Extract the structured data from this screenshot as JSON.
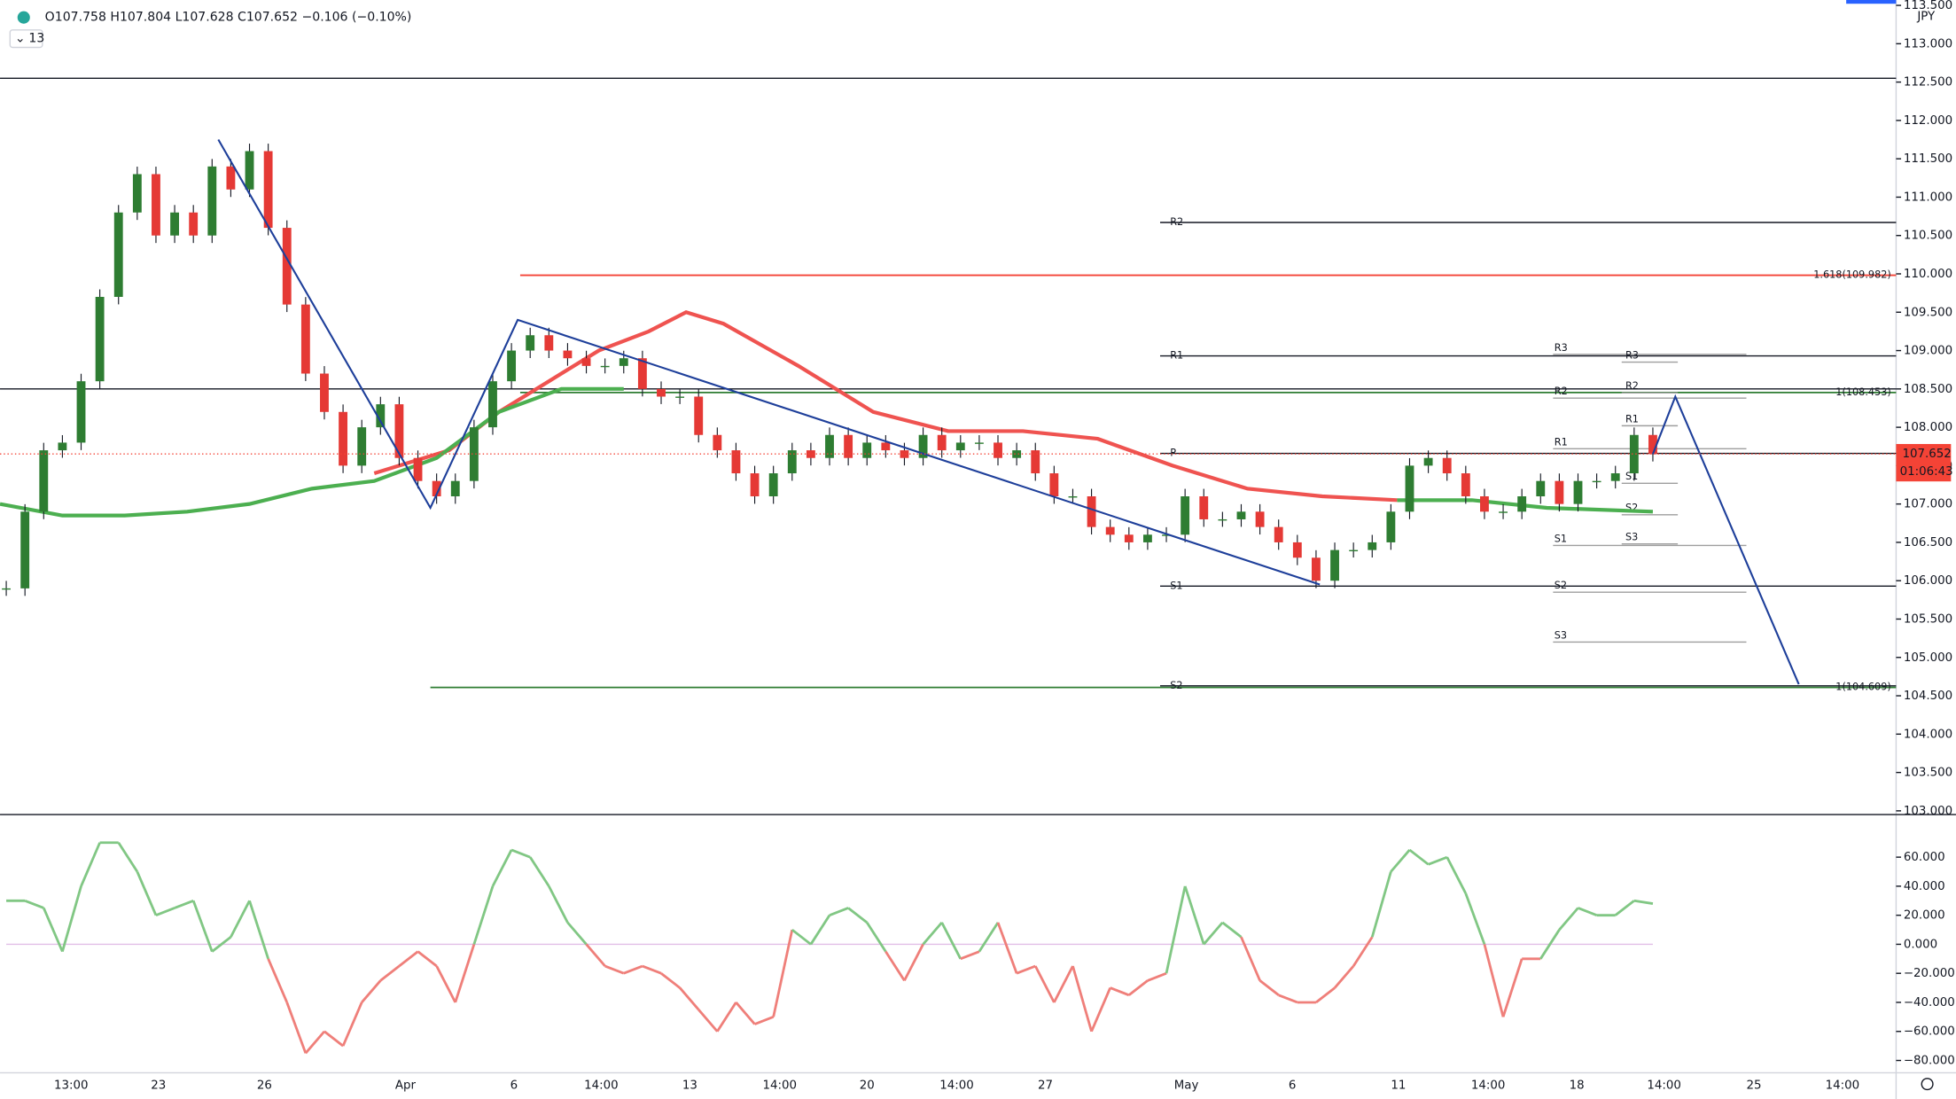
{
  "header": {
    "ohlc": "O107.758 H107.804 L107.628 C107.652 −0.106 (−0.10%)",
    "interval": "13",
    "currency": "JPY"
  },
  "chart_data": {
    "type": "candlestick",
    "ylim": [
      103.0,
      113.57
    ],
    "yticks": [
      {
        "value": 113.5,
        "label": "113.500"
      },
      {
        "value": 113,
        "label": "113.000"
      },
      {
        "value": 112.5,
        "label": "112.500"
      },
      {
        "value": 112,
        "label": "112.000"
      },
      {
        "value": 111.5,
        "label": "111.500"
      },
      {
        "value": 111,
        "label": "111.000"
      },
      {
        "value": 110.5,
        "label": "110.500"
      },
      {
        "value": 110,
        "label": "110.000"
      },
      {
        "value": 109.5,
        "label": "109.500"
      },
      {
        "value": 109,
        "label": "109.000"
      },
      {
        "value": 108.5,
        "label": "108.500"
      },
      {
        "value": 108,
        "label": "108.000"
      },
      {
        "value": 107.5,
        "label": "107.500"
      },
      {
        "value": 107,
        "label": "107.000"
      },
      {
        "value": 106.5,
        "label": "106.500"
      },
      {
        "value": 106,
        "label": "106.000"
      },
      {
        "value": 105.5,
        "label": "105.500"
      },
      {
        "value": 105,
        "label": "105.000"
      },
      {
        "value": 104.5,
        "label": "104.500"
      },
      {
        "value": 104,
        "label": "104.000"
      },
      {
        "value": 103.5,
        "label": "103.500"
      },
      {
        "value": 103,
        "label": "103.000"
      }
    ],
    "x_labels": [
      "13:00",
      "23",
      "26",
      "Apr",
      "6",
      "14:00",
      "13",
      "14:00",
      "20",
      "14:00",
      "27",
      "May",
      "6",
      "11",
      "14:00",
      "18",
      "14:00",
      "25",
      "14:00"
    ],
    "closes": [
      105.9,
      106.9,
      107.7,
      107.8,
      108.6,
      109.7,
      110.8,
      111.3,
      110.5,
      110.8,
      110.5,
      111.4,
      111.1,
      111.6,
      110.6,
      109.6,
      108.7,
      108.2,
      107.5,
      108.0,
      108.3,
      107.6,
      107.3,
      107.1,
      107.3,
      108.0,
      108.6,
      109.0,
      109.2,
      109.0,
      108.9,
      108.8,
      108.8,
      108.9,
      108.5,
      108.4,
      108.4,
      107.9,
      107.7,
      107.4,
      107.1,
      107.4,
      107.7,
      107.6,
      107.9,
      107.6,
      107.8,
      107.7,
      107.6,
      107.9,
      107.7,
      107.8,
      107.8,
      107.6,
      107.7,
      107.4,
      107.1,
      107.1,
      106.7,
      106.6,
      106.5,
      106.6,
      106.6,
      107.1,
      106.8,
      106.8,
      106.9,
      106.7,
      106.5,
      106.3,
      106.0,
      106.4,
      106.4,
      106.5,
      106.9,
      107.5,
      107.6,
      107.4,
      107.1,
      106.9,
      106.9,
      107.1,
      107.3,
      107.0,
      107.3,
      107.3,
      107.4,
      107.9,
      107.652
    ],
    "up_color": "#26a69a",
    "candle_up": "#2e7d32",
    "candle_down": "#e53935",
    "last_price": {
      "value": 107.652,
      "label": "107.652"
    },
    "countdown": "01:06:43",
    "ma_red": [
      107.4,
      107.7,
      108.2,
      108.6,
      109.0,
      109.25,
      109.5,
      109.35,
      108.8,
      108.2,
      107.95,
      107.95,
      107.85,
      107.5,
      107.2,
      107.1,
      107.05
    ],
    "ma_green": [
      107.0,
      106.85,
      106.85,
      106.9,
      107.0,
      107.2,
      107.3,
      107.6,
      108.2,
      108.5,
      108.5,
      null,
      107.05,
      107.05,
      106.95,
      106.9
    ],
    "levels": [
      {
        "value": 112.55,
        "color": "#131722"
      },
      {
        "value": 108.5,
        "color": "#131722"
      }
    ],
    "fib": [
      {
        "value": 109.982,
        "label": "1.618(109.982)",
        "color": "#f44336"
      },
      {
        "value": 108.453,
        "label": "1(108.453)",
        "color": "#2e7d32"
      },
      {
        "value": 104.609,
        "label": "1(104.609)",
        "color": "#2e7d32"
      }
    ],
    "pivot_sets": [
      {
        "color": "#131722",
        "levels": [
          {
            "name": "R2",
            "value": 110.67
          },
          {
            "name": "R1",
            "value": 108.93
          },
          {
            "name": "P",
            "value": 107.66
          },
          {
            "name": "S1",
            "value": 105.93
          },
          {
            "name": "S2",
            "value": 104.63
          }
        ]
      },
      {
        "color": "#9e9e9e",
        "levels": [
          {
            "name": "R3",
            "value": 108.95
          },
          {
            "name": "R2",
            "value": 108.38
          },
          {
            "name": "R1",
            "value": 107.72
          },
          {
            "name": "S1",
            "value": 106.46
          },
          {
            "name": "S2",
            "value": 105.85
          },
          {
            "name": "S3",
            "value": 105.2
          }
        ]
      },
      {
        "color": "#9e9e9e",
        "levels": [
          {
            "name": "R3",
            "value": 108.85
          },
          {
            "name": "R2",
            "value": 108.45
          },
          {
            "name": "R1",
            "value": 108.02
          },
          {
            "name": "S1",
            "value": 107.27
          },
          {
            "name": "S2",
            "value": 106.86
          },
          {
            "name": "S3",
            "value": 106.48
          }
        ]
      }
    ],
    "zigzag": [
      111.75,
      106.95,
      109.4,
      105.95
    ],
    "projection": [
      107.65,
      108.4,
      104.65
    ],
    "drawing_color": "#1e3f9a"
  },
  "oscillator": {
    "type": "line",
    "ylim": [
      -88.5,
      87.6
    ],
    "yticks": [
      {
        "value": 60,
        "label": "60.000"
      },
      {
        "value": 40,
        "label": "40.000"
      },
      {
        "value": 20,
        "label": "20.000"
      },
      {
        "value": 0,
        "label": "0.000"
      },
      {
        "value": -20,
        "label": "−20.000"
      },
      {
        "value": -40,
        "label": "−40.000"
      },
      {
        "value": -60,
        "label": "−60.000"
      },
      {
        "value": -80,
        "label": "−80.000"
      }
    ],
    "values": [
      30,
      30,
      25,
      -5,
      40,
      70,
      70,
      50,
      20,
      25,
      30,
      -5,
      5,
      30,
      -10,
      -40,
      -75,
      -60,
      -70,
      -40,
      -25,
      -15,
      -5,
      -15,
      -40,
      0,
      40,
      65,
      60,
      40,
      15,
      0,
      -15,
      -20,
      -15,
      -20,
      -30,
      -45,
      -60,
      -40,
      -55,
      -50,
      10,
      0,
      20,
      25,
      15,
      -5,
      -25,
      0,
      15,
      -10,
      -5,
      15,
      -20,
      -15,
      -40,
      -15,
      -60,
      -30,
      -35,
      -25,
      -20,
      40,
      0,
      15,
      5,
      -25,
      -35,
      -40,
      -40,
      -30,
      -15,
      5,
      50,
      65,
      55,
      60,
      35,
      0,
      -50,
      -10,
      -10,
      10,
      25,
      20,
      20,
      30,
      28
    ],
    "up_color": "#81c784",
    "down_color": "#ef7f7a",
    "zero_color": "#e1bee7"
  }
}
